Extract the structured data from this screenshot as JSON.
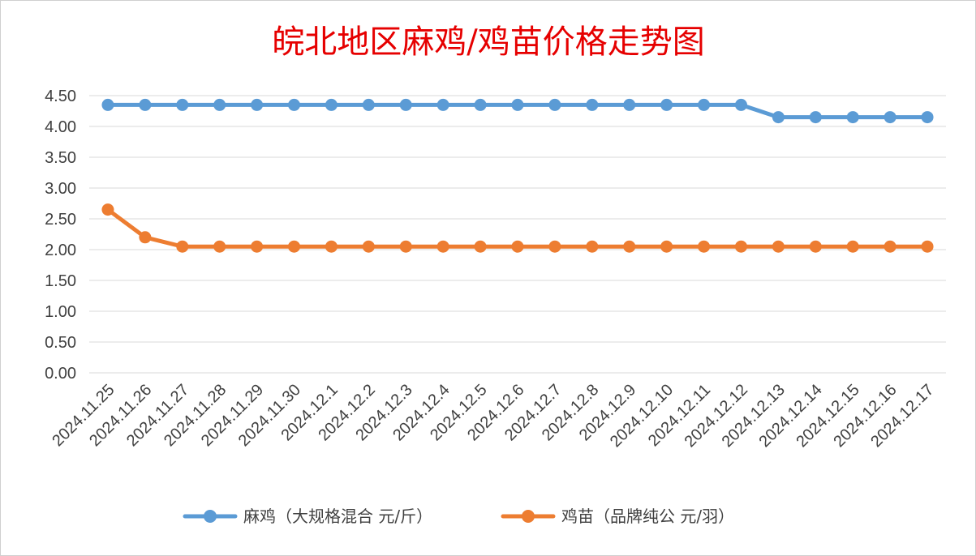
{
  "chart_data": {
    "type": "line",
    "title": "皖北地区麻鸡/鸡苗价格走势图",
    "xlabel": "",
    "ylabel": "",
    "ylim": [
      0,
      4.5
    ],
    "yticks": [
      "0.00",
      "0.50",
      "1.00",
      "1.50",
      "2.00",
      "2.50",
      "3.00",
      "3.50",
      "4.00",
      "4.50"
    ],
    "grid": true,
    "legend_position": "bottom",
    "categories": [
      "2024.11.25",
      "2024.11.26",
      "2024.11.27",
      "2024.11.28",
      "2024.11.29",
      "2024.11.30",
      "2024.12.1",
      "2024.12.2",
      "2024.12.3",
      "2024.12.4",
      "2024.12.5",
      "2024.12.6",
      "2024.12.7",
      "2024.12.8",
      "2024.12.9",
      "2024.12.10",
      "2024.12.11",
      "2024.12.12",
      "2024.12.13",
      "2024.12.14",
      "2024.12.15",
      "2024.12.16",
      "2024.12.17"
    ],
    "series": [
      {
        "name": "麻鸡（大规格混合 元/斤）",
        "color": "#5b9bd5",
        "values": [
          4.35,
          4.35,
          4.35,
          4.35,
          4.35,
          4.35,
          4.35,
          4.35,
          4.35,
          4.35,
          4.35,
          4.35,
          4.35,
          4.35,
          4.35,
          4.35,
          4.35,
          4.35,
          4.15,
          4.15,
          4.15,
          4.15,
          4.15
        ]
      },
      {
        "name": "鸡苗（品牌纯公 元/羽）",
        "color": "#ed7d31",
        "values": [
          2.65,
          2.2,
          2.05,
          2.05,
          2.05,
          2.05,
          2.05,
          2.05,
          2.05,
          2.05,
          2.05,
          2.05,
          2.05,
          2.05,
          2.05,
          2.05,
          2.05,
          2.05,
          2.05,
          2.05,
          2.05,
          2.05,
          2.05
        ]
      }
    ]
  }
}
